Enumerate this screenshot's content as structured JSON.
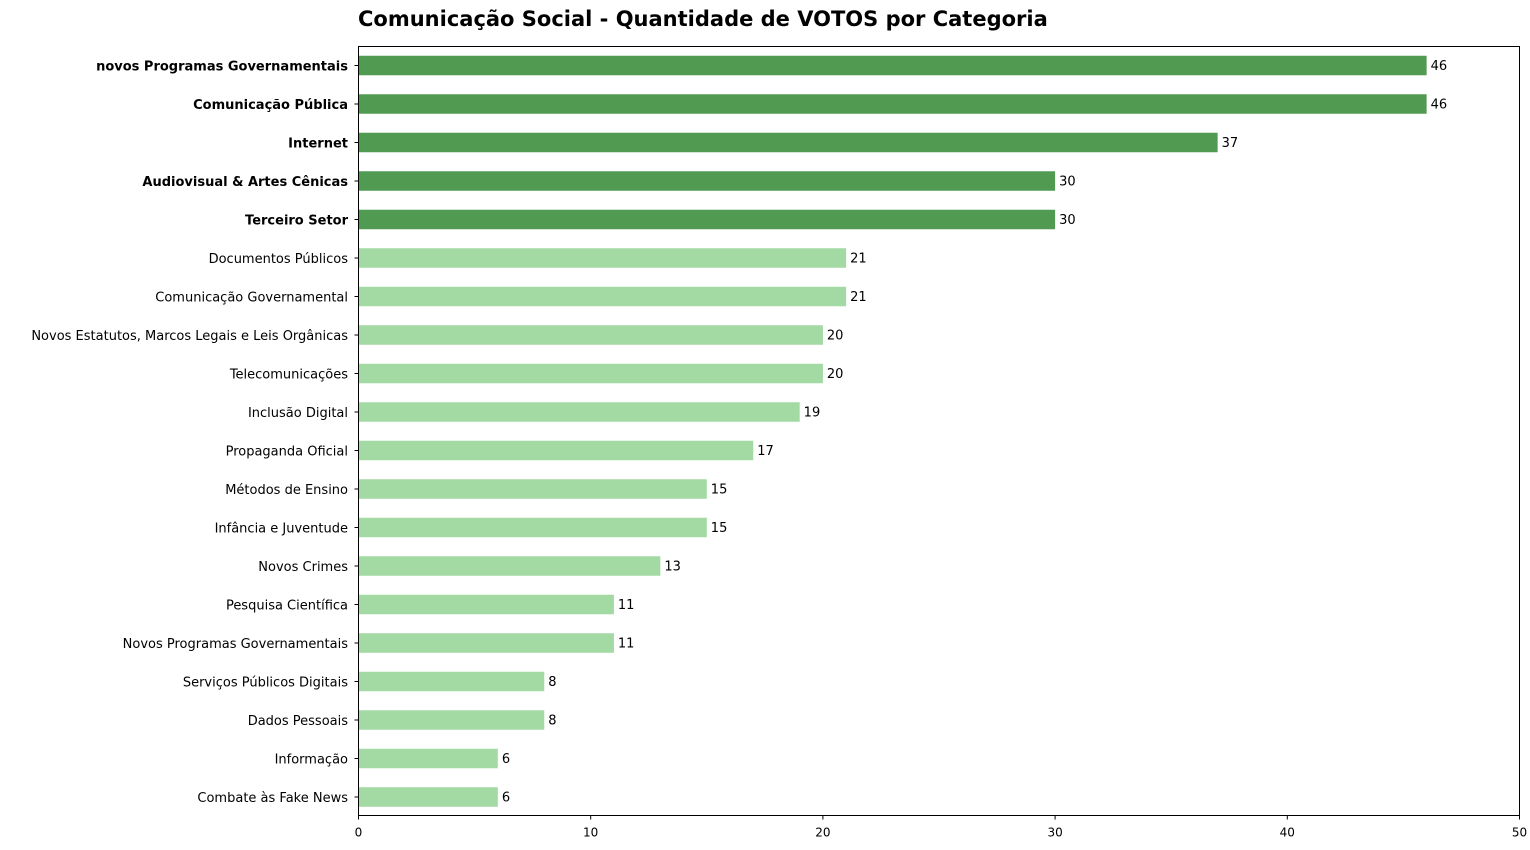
{
  "chart_data": {
    "type": "bar",
    "orientation": "horizontal",
    "title": "Comunicação Social - Quantidade de VOTOS por Categoria",
    "xlabel": "",
    "ylabel": "",
    "xlim": [
      0,
      50
    ],
    "xticks": [
      0,
      10,
      20,
      30,
      40,
      50
    ],
    "grid": false,
    "colors": {
      "highlight": "#519a51",
      "normal": "#a3d9a3"
    },
    "categories": [
      "novos Programas Governamentais",
      "Comunicação Pública",
      "Internet",
      "Audiovisual & Artes Cênicas",
      "Terceiro Setor",
      "Documentos Públicos",
      "Comunicação Governamental",
      "Novos Estatutos, Marcos Legais e Leis Orgânicas",
      "Telecomunicações",
      "Inclusão Digital",
      "Propaganda Oficial",
      "Métodos de Ensino",
      "Infância e Juventude",
      "Novos Crimes",
      "Pesquisa Científica",
      "Novos Programas Governamentais",
      "Serviços Públicos Digitais",
      "Dados Pessoais",
      "Informação",
      "Combate às Fake News"
    ],
    "values": [
      46,
      46,
      37,
      30,
      30,
      21,
      21,
      20,
      20,
      19,
      17,
      15,
      15,
      13,
      11,
      11,
      8,
      8,
      6,
      6
    ],
    "highlighted_count": 5
  }
}
